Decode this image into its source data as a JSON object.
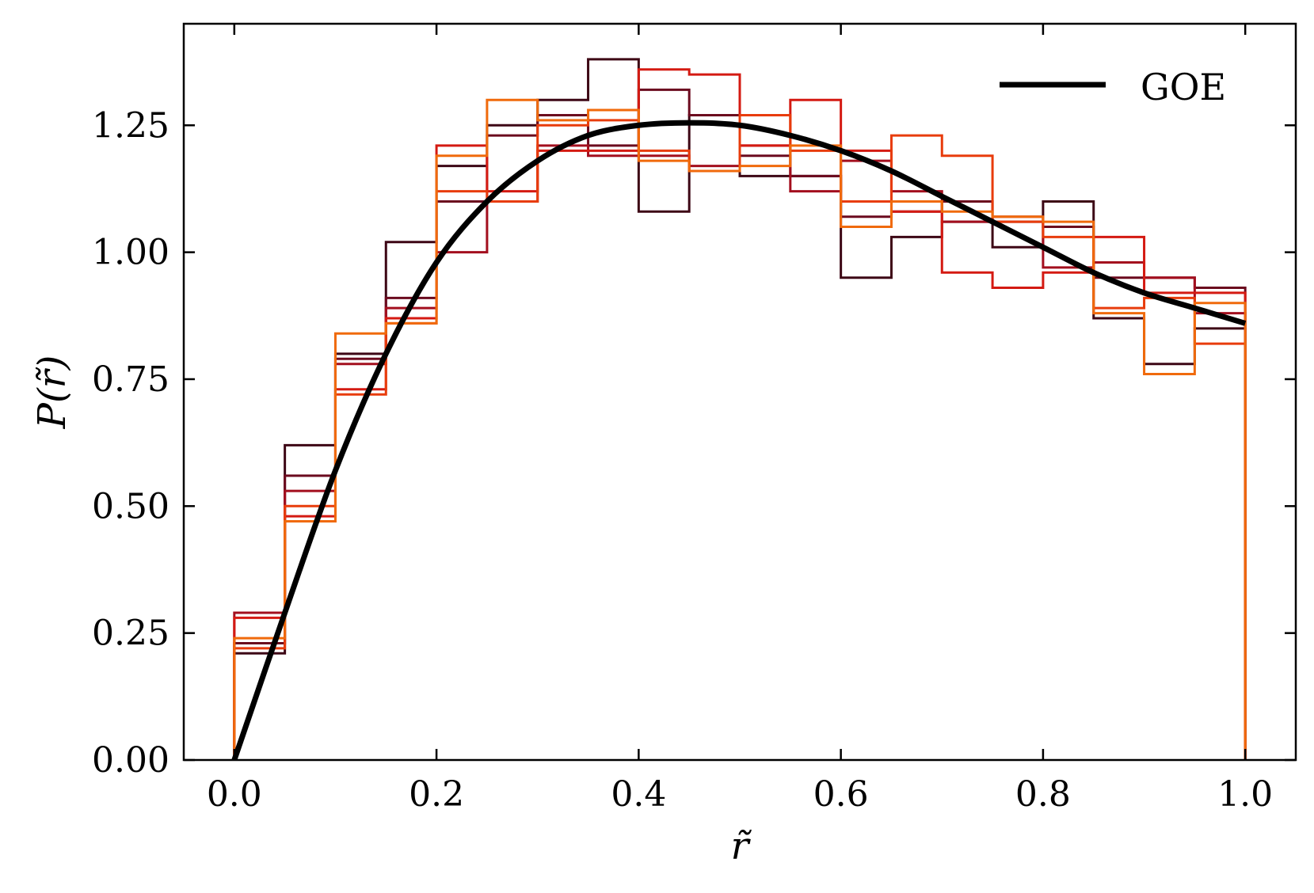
{
  "chart_data": {
    "type": "line",
    "title": "",
    "xlabel": "r̃",
    "ylabel": "P(r̃)",
    "xlim": [
      -0.05,
      1.05
    ],
    "ylim": [
      0.0,
      1.45
    ],
    "grid": false,
    "legend_position": "top-right",
    "x_ticks": [
      "0.0",
      "0.2",
      "0.4",
      "0.6",
      "0.8",
      "1.0"
    ],
    "y_ticks": [
      "0.00",
      "0.25",
      "0.50",
      "0.75",
      "1.00",
      "1.25"
    ],
    "bin_edges": [
      0.0,
      0.05,
      0.1,
      0.15,
      0.2,
      0.25,
      0.3,
      0.35,
      0.4,
      0.45,
      0.5,
      0.55,
      0.6,
      0.65,
      0.7,
      0.75,
      0.8,
      0.85,
      0.9,
      0.95,
      1.0
    ],
    "histograms": [
      {
        "color": "#3d0715",
        "values": [
          0.21,
          0.62,
          0.8,
          1.02,
          1.17,
          1.25,
          1.3,
          1.38,
          1.08,
          1.27,
          1.15,
          1.15,
          0.95,
          1.03,
          1.06,
          1.01,
          1.1,
          0.87,
          0.78,
          0.85
        ]
      },
      {
        "color": "#6b0a1e",
        "values": [
          0.23,
          0.56,
          0.79,
          0.91,
          1.1,
          1.23,
          1.27,
          1.21,
          1.32,
          1.27,
          1.19,
          1.15,
          1.07,
          1.08,
          1.1,
          1.06,
          1.05,
          0.95,
          0.95,
          0.93
        ]
      },
      {
        "color": "#a30f1e",
        "values": [
          0.29,
          0.53,
          0.78,
          0.89,
          1.0,
          1.1,
          1.21,
          1.19,
          1.19,
          1.17,
          1.21,
          1.12,
          1.18,
          1.12,
          1.06,
          1.07,
          0.97,
          0.98,
          0.95,
          0.88
        ]
      },
      {
        "color": "#d41a12",
        "values": [
          0.28,
          0.48,
          0.73,
          0.87,
          1.21,
          1.12,
          1.2,
          1.2,
          1.36,
          1.35,
          1.21,
          1.3,
          1.2,
          1.08,
          0.96,
          0.93,
          0.96,
          1.03,
          0.92,
          0.92
        ]
      },
      {
        "color": "#e83c0c",
        "values": [
          0.22,
          0.5,
          0.72,
          0.86,
          1.12,
          1.1,
          1.25,
          1.26,
          1.2,
          1.16,
          1.27,
          1.2,
          1.1,
          1.23,
          1.19,
          1.06,
          1.03,
          0.89,
          0.91,
          0.82
        ]
      },
      {
        "color": "#f06a0c",
        "values": [
          0.24,
          0.47,
          0.84,
          0.86,
          1.19,
          1.3,
          1.26,
          1.28,
          1.18,
          1.16,
          1.17,
          1.21,
          1.05,
          1.1,
          1.08,
          1.07,
          1.06,
          0.88,
          0.76,
          0.9
        ]
      }
    ],
    "series": [
      {
        "name": "GOE",
        "color": "#000000",
        "x": [
          0.0,
          0.05,
          0.1,
          0.15,
          0.2,
          0.25,
          0.3,
          0.35,
          0.4,
          0.45,
          0.5,
          0.55,
          0.6,
          0.65,
          0.7,
          0.75,
          0.8,
          0.85,
          0.9,
          0.95,
          1.0
        ],
        "values": [
          0.0,
          0.29,
          0.57,
          0.8,
          0.98,
          1.1,
          1.18,
          1.23,
          1.25,
          1.255,
          1.25,
          1.23,
          1.2,
          1.16,
          1.11,
          1.06,
          1.01,
          0.96,
          0.92,
          0.89,
          0.86
        ]
      }
    ]
  }
}
